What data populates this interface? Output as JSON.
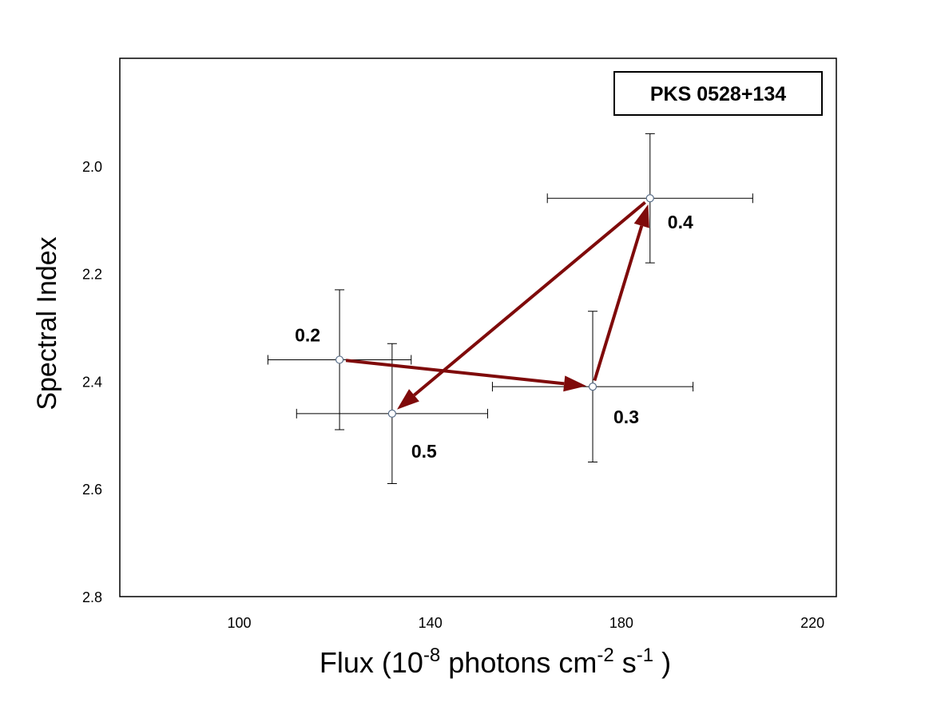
{
  "chart_data": {
    "type": "scatter",
    "xlabel": [
      "Flux  (10",
      "-8",
      " photons  cm",
      "-2",
      " s",
      "-1",
      " )"
    ],
    "ylabel": "Spectral Index",
    "xlim": [
      75,
      225
    ],
    "ylim": [
      2.8,
      1.8
    ],
    "xticks": [
      100,
      140,
      180,
      220
    ],
    "yticks": [
      {
        "value": 2.0,
        "label": "2.0"
      },
      2.2,
      2.4,
      2.6,
      2.8
    ],
    "legend": "upper right",
    "arrows": true,
    "series": [
      {
        "name": "PKS 0528+134",
        "color": "#5a6f8a",
        "arrow_color": "#7f0a0a",
        "x": [
          121,
          174,
          186,
          132
        ],
        "values": [
          2.36,
          2.41,
          2.06,
          2.46
        ],
        "xerr": [
          15,
          21,
          21.5,
          20
        ],
        "yerr": [
          0.13,
          0.14,
          0.12,
          0.13
        ],
        "labels": [
          "0.2",
          "0.3",
          "0.4",
          "0.5"
        ]
      }
    ]
  }
}
